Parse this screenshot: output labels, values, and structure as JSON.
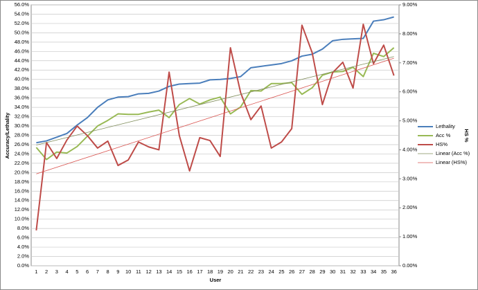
{
  "chart_data": {
    "type": "line",
    "x_label": "User",
    "y_label": "Accuracy/Lethality",
    "y2_label": "HS %",
    "categories": [
      "1",
      "2",
      "3",
      "4",
      "5",
      "6",
      "7",
      "8",
      "9",
      "10",
      "11",
      "12",
      "13",
      "14",
      "15",
      "16",
      "17",
      "18",
      "19",
      "20",
      "21",
      "22",
      "23",
      "24",
      "25",
      "26",
      "27",
      "28",
      "29",
      "30",
      "31",
      "32",
      "33",
      "34",
      "35",
      "36"
    ],
    "series": [
      {
        "name": "Lethality",
        "color": "#4a7ebb",
        "width": 2,
        "values": [
          26.4,
          26.8,
          27.6,
          28.4,
          30.2,
          31.8,
          34.0,
          35.6,
          36.2,
          36.3,
          36.9,
          37.0,
          37.5,
          38.5,
          39.0,
          39.1,
          39.2,
          39.9,
          40.0,
          40.2,
          40.6,
          42.5,
          42.8,
          43.1,
          43.4,
          44.0,
          45.0,
          45.4,
          46.5,
          48.3,
          48.6,
          48.7,
          48.8,
          52.5,
          52.8,
          53.4
        ]
      },
      {
        "name": "Acc %",
        "color": "#98b954",
        "width": 2,
        "values": [
          25.4,
          22.8,
          24.4,
          24.2,
          25.6,
          27.8,
          30.0,
          31.2,
          32.6,
          32.5,
          32.5,
          33.0,
          33.4,
          31.8,
          34.6,
          35.9,
          34.7,
          35.6,
          36.2,
          32.6,
          34.1,
          37.6,
          37.5,
          39.1,
          39.1,
          39.3,
          36.8,
          38.2,
          40.9,
          41.6,
          41.7,
          42.6,
          40.6,
          45.6,
          44.9,
          46.8
        ]
      },
      {
        "name": "HS%",
        "color": "#be4b48",
        "width": 2,
        "axis": "y2",
        "values": [
          1.22,
          4.25,
          3.7,
          4.34,
          4.82,
          4.49,
          4.06,
          4.3,
          3.46,
          3.65,
          4.27,
          4.1,
          4.0,
          6.68,
          4.49,
          3.27,
          4.42,
          4.32,
          3.77,
          7.52,
          5.97,
          5.04,
          5.51,
          4.06,
          4.27,
          4.73,
          8.3,
          7.35,
          5.56,
          6.66,
          7.02,
          6.13,
          8.33,
          6.97,
          7.61,
          6.56
        ]
      },
      {
        "name": "Linear (Acc %)",
        "color": "#7f8c5a",
        "width": 0.8,
        "x": [
          1,
          36
        ],
        "values": [
          25.9,
          44.9
        ]
      },
      {
        "name": "Linear (HS%)",
        "color": "#d9534f",
        "width": 0.8,
        "axis": "y2",
        "x": [
          1,
          36
        ],
        "values": [
          3.17,
          7.16
        ]
      }
    ],
    "ylim": [
      0,
      56
    ],
    "yticks": [
      {
        "value": 0,
        "label": "0.0%"
      },
      {
        "value": 2,
        "label": "2.0%"
      },
      {
        "value": 4,
        "label": "4.0%"
      },
      {
        "value": 6,
        "label": "6.0%"
      },
      {
        "value": 8,
        "label": "8.0%"
      },
      {
        "value": 10,
        "label": "10.0%"
      },
      {
        "value": 12,
        "label": "12.0%"
      },
      {
        "value": 14,
        "label": "14.0%"
      },
      {
        "value": 16,
        "label": "16.0%"
      },
      {
        "value": 18,
        "label": "18.0%"
      },
      {
        "value": 20,
        "label": "20.0%"
      },
      {
        "value": 22,
        "label": "22.0%"
      },
      {
        "value": 24,
        "label": "24.0%"
      },
      {
        "value": 26,
        "label": "26.0%"
      },
      {
        "value": 28,
        "label": "28.0%"
      },
      {
        "value": 30,
        "label": "30.0%"
      },
      {
        "value": 32,
        "label": "32.0%"
      },
      {
        "value": 34,
        "label": "34.0%"
      },
      {
        "value": 36,
        "label": "36.0%"
      },
      {
        "value": 38,
        "label": "38.0%"
      },
      {
        "value": 40,
        "label": "40.0%"
      },
      {
        "value": 42,
        "label": "42.0%"
      },
      {
        "value": 44,
        "label": "44.0%"
      },
      {
        "value": 46,
        "label": "46.0%"
      },
      {
        "value": 48,
        "label": "48.0%"
      },
      {
        "value": 50,
        "label": "50.0%"
      },
      {
        "value": 52,
        "label": "52.0%"
      },
      {
        "value": 54,
        "label": "54.0%"
      },
      {
        "value": 56,
        "label": "56.0%"
      }
    ],
    "y2lim": [
      0,
      9
    ],
    "y2ticks": [
      {
        "value": 0,
        "label": "0.00%"
      },
      {
        "value": 1,
        "label": "1.00%"
      },
      {
        "value": 2,
        "label": "2.00%"
      },
      {
        "value": 3,
        "label": "3.00%"
      },
      {
        "value": 4,
        "label": "4.00%"
      },
      {
        "value": 5,
        "label": "5.00%"
      },
      {
        "value": 6,
        "label": "6.00%"
      },
      {
        "value": 7,
        "label": "7.00%"
      },
      {
        "value": 8,
        "label": "8.00%"
      },
      {
        "value": 9,
        "label": "9.00%"
      }
    ],
    "grid": true,
    "legend": "right"
  }
}
